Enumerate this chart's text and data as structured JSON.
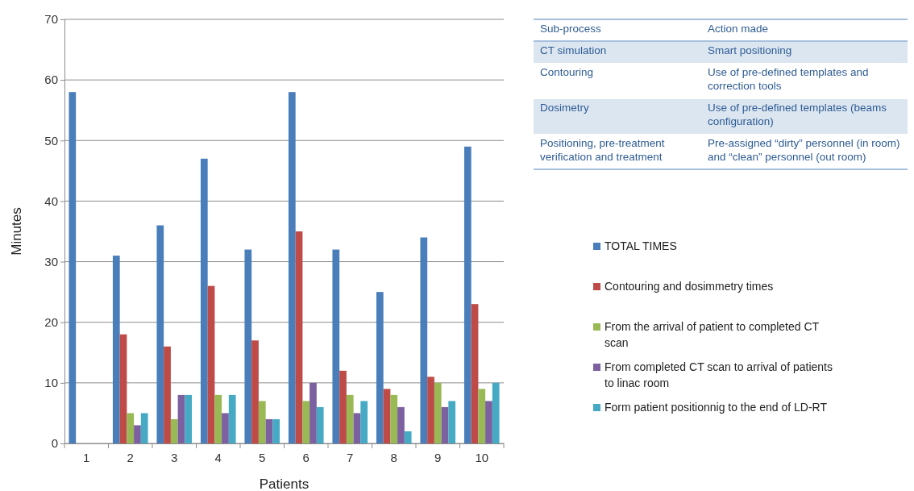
{
  "chart_data": [
    {
      "type": "bar",
      "xlabel": "Patients",
      "ylabel": "Minutes",
      "categories": [
        "1",
        "2",
        "3",
        "4",
        "5",
        "6",
        "7",
        "8",
        "9",
        "10"
      ],
      "series": [
        {
          "name": "TOTAL TIMES",
          "color": "#4a7ebb",
          "values": [
            58,
            31,
            36,
            47,
            32,
            58,
            32,
            25,
            34,
            49
          ]
        },
        {
          "name": "Contouring and dosimmetry times",
          "color": "#be4b48",
          "values": [
            null,
            18,
            16,
            26,
            17,
            35,
            12,
            9,
            11,
            23
          ]
        },
        {
          "name": "From the arrival of patient to completed CT scan",
          "color": "#98b954",
          "values": [
            null,
            5,
            4,
            8,
            7,
            7,
            8,
            8,
            10,
            9
          ]
        },
        {
          "name": "From completed CT scan to arrival of patients to linac room",
          "color": "#7d60a0",
          "values": [
            null,
            3,
            8,
            5,
            4,
            10,
            5,
            6,
            6,
            7
          ]
        },
        {
          "name": "Form patient positionnig to the end of LD-RT",
          "color": "#46aac5",
          "values": [
            null,
            5,
            8,
            8,
            4,
            6,
            7,
            2,
            7,
            10
          ]
        }
      ],
      "ylim": [
        0,
        70
      ],
      "yticks": [
        0,
        10,
        20,
        30,
        40,
        50,
        60,
        70
      ],
      "grid": "y",
      "legend": "right"
    },
    {
      "type": "other",
      "annotations": [
        "Sub-process",
        "Action made",
        "CT simulation",
        "Smart positioning",
        "Contouring",
        "Use of pre-defined templates and correction tools",
        "Dosimetry",
        "Use of pre-defined templates (beams configuration)",
        "Positioning, pre-treatment verification and treatment",
        "Pre-assigned “dirty” personnel (in room) and “clean” personnel (out room)"
      ]
    }
  ]
}
